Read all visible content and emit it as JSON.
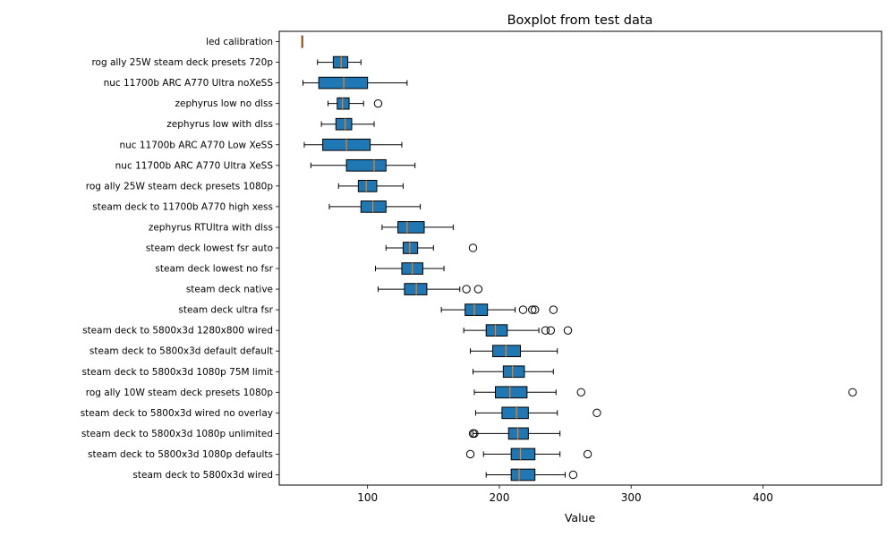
{
  "chart_data": {
    "type": "boxplot",
    "title": "Boxplot from test data",
    "xlabel": "Value",
    "ylabel": "",
    "xlim": [
      33,
      490
    ],
    "x_ticks": [
      100,
      200,
      300,
      400
    ],
    "grid": false,
    "colors": {
      "box_fill": "#1f77b4",
      "median": "#ff7f0e",
      "edge": "#000000"
    },
    "categories": [
      "led calibration",
      "rog ally 25W steam deck presets 720p",
      "nuc 11700b ARC A770 Ultra noXeSS",
      "zephyrus low no dlss",
      "zephyrus low with dlss",
      "nuc 11700b ARC A770 Low XeSS",
      "nuc 11700b ARC A770 Ultra XeSS",
      "rog ally 25W steam deck presets 1080p",
      "steam deck to 11700b A770 high xess",
      "zephyrus RTUltra with dlss",
      "steam deck lowest fsr auto",
      "steam deck lowest no fsr",
      "steam deck native",
      "steam deck ultra fsr",
      "steam deck to 5800x3d 1280x800 wired",
      "steam deck to 5800x3d default default",
      "steam deck to 5800x3d 1080p 75M limit",
      "rog ally 10W steam deck presets 1080p",
      "steam deck to 5800x3d wired no overlay",
      "steam deck to 5800x3d 1080p unlimited",
      "steam deck to 5800x3d 1080p defaults",
      "steam deck to 5800x3d wired"
    ],
    "boxes": [
      {
        "whislo": 50,
        "q1": 50,
        "med": 50,
        "q3": 50,
        "whishi": 50,
        "fliers": []
      },
      {
        "whislo": 62,
        "q1": 74,
        "med": 80,
        "q3": 85,
        "whishi": 95,
        "fliers": []
      },
      {
        "whislo": 51,
        "q1": 63,
        "med": 82,
        "q3": 100,
        "whishi": 130,
        "fliers": []
      },
      {
        "whislo": 70,
        "q1": 77,
        "med": 81,
        "q3": 86,
        "whishi": 97,
        "fliers": [
          108
        ]
      },
      {
        "whislo": 65,
        "q1": 76,
        "med": 83,
        "q3": 88,
        "whishi": 105,
        "fliers": []
      },
      {
        "whislo": 52,
        "q1": 66,
        "med": 84,
        "q3": 102,
        "whishi": 126,
        "fliers": []
      },
      {
        "whislo": 57,
        "q1": 84,
        "med": 105,
        "q3": 114,
        "whishi": 136,
        "fliers": []
      },
      {
        "whislo": 78,
        "q1": 93,
        "med": 99,
        "q3": 107,
        "whishi": 127,
        "fliers": []
      },
      {
        "whislo": 71,
        "q1": 95,
        "med": 104,
        "q3": 114,
        "whishi": 140,
        "fliers": []
      },
      {
        "whislo": 111,
        "q1": 123,
        "med": 130,
        "q3": 143,
        "whishi": 165,
        "fliers": []
      },
      {
        "whislo": 114,
        "q1": 127,
        "med": 132,
        "q3": 138,
        "whishi": 150,
        "fliers": [
          180
        ]
      },
      {
        "whislo": 106,
        "q1": 126,
        "med": 134,
        "q3": 142,
        "whishi": 158,
        "fliers": []
      },
      {
        "whislo": 108,
        "q1": 128,
        "med": 137,
        "q3": 145,
        "whishi": 170,
        "fliers": [
          175,
          184
        ]
      },
      {
        "whislo": 156,
        "q1": 174,
        "med": 181,
        "q3": 191,
        "whishi": 212,
        "fliers": [
          218,
          225,
          227,
          241
        ]
      },
      {
        "whislo": 173,
        "q1": 190,
        "med": 197,
        "q3": 206,
        "whishi": 230,
        "fliers": [
          235,
          239,
          252
        ]
      },
      {
        "whislo": 178,
        "q1": 195,
        "med": 205,
        "q3": 216,
        "whishi": 244,
        "fliers": []
      },
      {
        "whislo": 180,
        "q1": 203,
        "med": 210,
        "q3": 219,
        "whishi": 241,
        "fliers": []
      },
      {
        "whislo": 181,
        "q1": 197,
        "med": 208,
        "q3": 221,
        "whishi": 243,
        "fliers": [
          262,
          468
        ]
      },
      {
        "whislo": 182,
        "q1": 202,
        "med": 213,
        "q3": 222,
        "whishi": 244,
        "fliers": [
          274
        ]
      },
      {
        "whislo": 180,
        "q1": 207,
        "med": 214,
        "q3": 222,
        "whishi": 246,
        "fliers": [
          180,
          181
        ]
      },
      {
        "whislo": 188,
        "q1": 209,
        "med": 216,
        "q3": 227,
        "whishi": 246,
        "fliers": [
          178,
          267
        ]
      },
      {
        "whislo": 190,
        "q1": 209,
        "med": 215,
        "q3": 227,
        "whishi": 250,
        "fliers": [
          256
        ]
      }
    ]
  }
}
